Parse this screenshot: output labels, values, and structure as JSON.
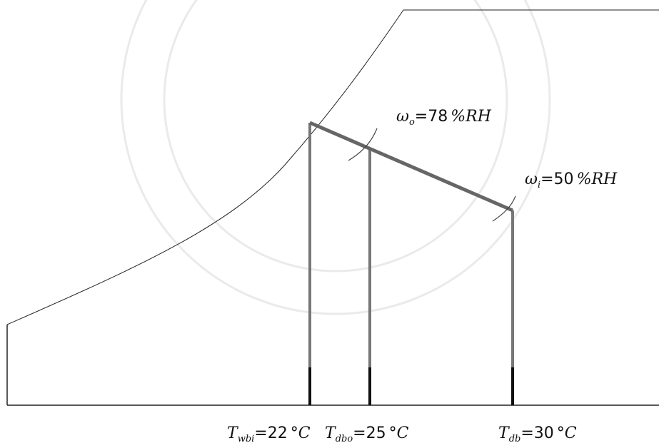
{
  "labels": [
    {
      "symbol": "ω",
      "sub": "o",
      "value": "=78",
      "unit": "%RH"
    },
    {
      "symbol": "ω",
      "sub": "i",
      "value": "=50",
      "unit": "%RH"
    },
    {
      "symbol": "T",
      "sub": "wbi",
      "value": "=22",
      "unit": "°C"
    },
    {
      "symbol": "T",
      "sub": "dbo",
      "value": "=25",
      "unit": "°C"
    },
    {
      "symbol": "T",
      "sub": "db",
      "value": "=30",
      "unit": "°C"
    }
  ]
}
